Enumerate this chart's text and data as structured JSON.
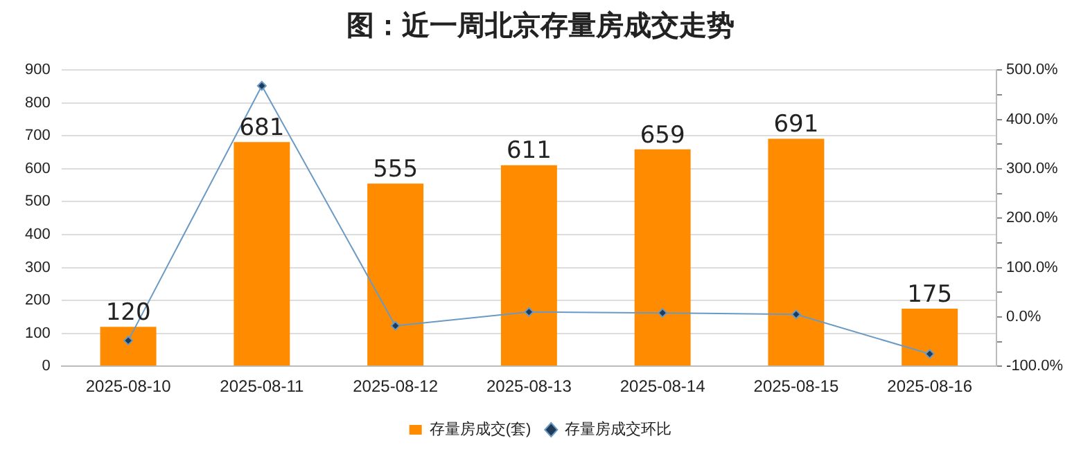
{
  "chart_data": {
    "type": "bar",
    "title": "图：近一周北京存量房成交走势",
    "categories": [
      "2025-08-10",
      "2025-08-11",
      "2025-08-12",
      "2025-08-13",
      "2025-08-14",
      "2025-08-15",
      "2025-08-16"
    ],
    "series": [
      {
        "name": "存量房成交(套)",
        "color": "#ff8c00",
        "values": [
          120,
          681,
          555,
          611,
          659,
          691,
          175
        ],
        "value_labels": [
          "120",
          "681",
          "555",
          "611",
          "659",
          "691",
          "175"
        ]
      },
      {
        "name": "存量房成交环比",
        "type": "line",
        "axis": "y2",
        "color": "#6a9ac4",
        "marker": "diamond",
        "values": [
          -48,
          468,
          -18,
          10,
          8,
          5,
          -75
        ]
      }
    ],
    "ylim": [
      0,
      900
    ],
    "yticks": [
      0,
      100,
      200,
      300,
      400,
      500,
      600,
      700,
      800,
      900
    ],
    "y2lim": [
      -100,
      500
    ],
    "y2ticks": [
      {
        "value": -100,
        "label": "-100.0%"
      },
      {
        "value": -50,
        "label": null
      },
      {
        "value": 0,
        "label": "0.0%"
      },
      {
        "value": 50,
        "label": null
      },
      {
        "value": 100,
        "label": "100.0%"
      },
      {
        "value": 150,
        "label": null
      },
      {
        "value": 200,
        "label": "200.0%"
      },
      {
        "value": 250,
        "label": null
      },
      {
        "value": 300,
        "label": "300.0%"
      },
      {
        "value": 350,
        "label": null
      },
      {
        "value": 400,
        "label": "400.0%"
      },
      {
        "value": 450,
        "label": null
      },
      {
        "value": 500,
        "label": "500.0%"
      }
    ],
    "grid": "y",
    "legend": "bottom"
  }
}
